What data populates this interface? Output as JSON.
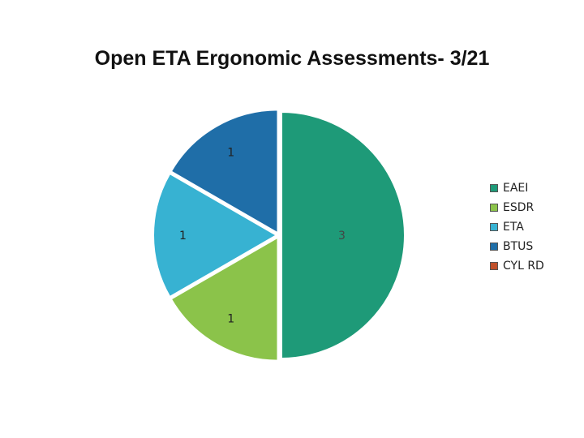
{
  "title": "Open ETA Ergonomic Assessments- 3/21",
  "chart_data": {
    "type": "pie",
    "title": "Open ETA Ergonomic Assessments- 3/21",
    "categories": [
      "EAEI",
      "ESDR",
      "ETA",
      "BTUS",
      "CYL RD"
    ],
    "values": [
      3,
      1,
      1,
      1,
      0
    ],
    "data_labels": [
      "3",
      "1",
      "1",
      "1",
      ""
    ],
    "colors": [
      "#1e9a78",
      "#8bc34a",
      "#37b2d2",
      "#1f6ea8",
      "#c0502a"
    ],
    "legend": "right",
    "exploded": true
  },
  "legend": {
    "items": [
      {
        "label": "EAEI",
        "color": "#1e9a78"
      },
      {
        "label": "ESDR",
        "color": "#8bc34a"
      },
      {
        "label": "ETA",
        "color": "#37b2d2"
      },
      {
        "label": "BTUS",
        "color": "#1f6ea8"
      },
      {
        "label": "CYL RD",
        "color": "#c0502a"
      }
    ]
  }
}
